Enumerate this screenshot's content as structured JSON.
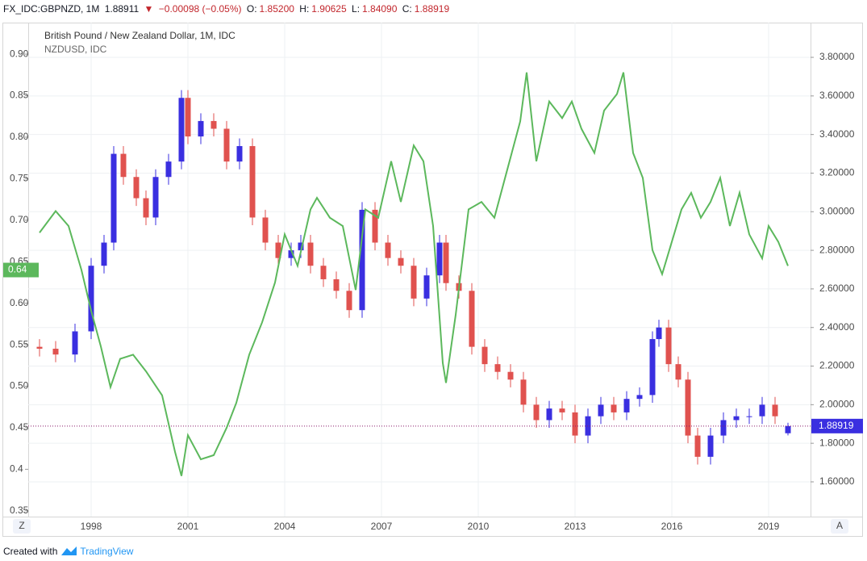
{
  "header": {
    "symbol": "FX_IDC:GBPNZD, 1M",
    "last": "1.88911",
    "arrow": "▼",
    "change": "−0.00098 (−0.05%)",
    "o_label": "O:",
    "o": "1.85200",
    "h_label": "H:",
    "h": "1.90625",
    "l_label": "L:",
    "l": "1.84090",
    "c_label": "C:",
    "c": "1.88919"
  },
  "footer": {
    "text": "Created with",
    "brand": "TradingView"
  },
  "buttons": {
    "left": "Z",
    "right": "A"
  },
  "chart_data": {
    "type": "candlestick",
    "xlim": [
      1996.05,
      2020.3
    ],
    "xticks": [
      1998,
      2001,
      2004,
      2007,
      2010,
      2013,
      2016,
      2019
    ],
    "ylim": [
      0.343,
      0.938
    ],
    "yticks": [
      0.35,
      0.4,
      {
        "value": 0.45,
        "label": "0.45"
      },
      {
        "value": 0.5,
        "label": "0.50"
      },
      0.55,
      {
        "value": 0.6,
        "label": "0.60"
      },
      0.65,
      {
        "value": 0.7,
        "label": "0.70"
      },
      0.75,
      {
        "value": 0.8,
        "label": "0.80"
      },
      0.85,
      {
        "value": 0.9,
        "label": "0.90"
      }
    ],
    "y2lim": [
      1.42,
      3.98
    ],
    "y2ticks": [
      {
        "value": 1.6,
        "label": "1.60000"
      },
      {
        "value": 1.8,
        "label": "1.80000"
      },
      {
        "value": 2.0,
        "label": "2.00000"
      },
      {
        "value": 2.2,
        "label": "2.20000"
      },
      {
        "value": 2.4,
        "label": "2.40000"
      },
      {
        "value": 2.6,
        "label": "2.60000"
      },
      {
        "value": 2.8,
        "label": "2.80000"
      },
      {
        "value": 3.0,
        "label": "3.00000"
      },
      {
        "value": 3.2,
        "label": "3.20000"
      },
      {
        "value": 3.4,
        "label": "3.40000"
      },
      {
        "value": 3.6,
        "label": "3.60000"
      },
      {
        "value": 3.8,
        "label": "3.80000"
      }
    ],
    "grid": true,
    "series": [
      {
        "name": "British Pound / New Zealand Dollar, 1M, IDC",
        "type": "candlestick",
        "axis": "y2",
        "up_color": "#3a2fe0",
        "down_color": "#e0524f",
        "last_color": "#3a2fe0",
        "last_value": 1.88919,
        "x": [
          1996.4,
          1996.9,
          1997.5,
          1998.0,
          1998.4,
          1998.7,
          1999.0,
          1999.4,
          1999.7,
          2000.0,
          2000.4,
          2000.8,
          2001.0,
          2001.4,
          2001.8,
          2002.2,
          2002.6,
          2003.0,
          2003.4,
          2003.8,
          2004.2,
          2004.5,
          2004.8,
          2005.2,
          2005.6,
          2006.0,
          2006.4,
          2006.8,
          2007.2,
          2007.6,
          2008.0,
          2008.4,
          2008.8,
          2009.0,
          2009.4,
          2009.8,
          2010.2,
          2010.6,
          2011.0,
          2011.4,
          2011.8,
          2012.2,
          2012.6,
          2013.0,
          2013.4,
          2013.8,
          2014.2,
          2014.6,
          2015.0,
          2015.4,
          2015.6,
          2015.9,
          2016.2,
          2016.5,
          2016.8,
          2017.2,
          2017.6,
          2018.0,
          2018.4,
          2018.8,
          2019.2,
          2019.6
        ],
        "open": [
          2.3,
          2.29,
          2.26,
          2.38,
          2.72,
          2.84,
          3.3,
          3.18,
          3.07,
          2.97,
          3.18,
          3.26,
          3.59,
          3.39,
          3.47,
          3.43,
          3.26,
          3.34,
          2.97,
          2.84,
          2.76,
          2.8,
          2.84,
          2.72,
          2.65,
          2.59,
          2.49,
          3.01,
          2.84,
          2.76,
          2.72,
          2.55,
          2.67,
          2.84,
          2.63,
          2.59,
          2.3,
          2.21,
          2.17,
          2.13,
          2.0,
          1.92,
          1.98,
          1.96,
          1.84,
          1.94,
          2.0,
          1.96,
          2.03,
          2.05,
          2.34,
          2.4,
          2.21,
          2.13,
          1.84,
          1.73,
          1.84,
          1.92,
          1.94,
          1.94,
          2.0,
          1.852
        ],
        "high": [
          2.34,
          2.33,
          2.42,
          2.76,
          2.88,
          3.34,
          3.34,
          3.22,
          3.11,
          3.22,
          3.3,
          3.63,
          3.63,
          3.51,
          3.51,
          3.47,
          3.38,
          3.38,
          3.01,
          2.88,
          2.84,
          2.88,
          2.88,
          2.76,
          2.69,
          2.63,
          3.05,
          3.05,
          2.88,
          2.8,
          2.76,
          2.71,
          2.88,
          2.88,
          2.67,
          2.63,
          2.34,
          2.25,
          2.21,
          2.17,
          2.04,
          2.02,
          2.02,
          2.0,
          1.98,
          2.04,
          2.04,
          2.07,
          2.09,
          2.38,
          2.44,
          2.44,
          2.25,
          2.17,
          1.88,
          1.88,
          1.96,
          1.98,
          1.98,
          2.04,
          2.04,
          1.90625
        ],
        "low": [
          2.25,
          2.22,
          2.22,
          2.34,
          2.68,
          2.8,
          3.14,
          3.03,
          2.93,
          2.93,
          3.14,
          3.22,
          3.35,
          3.35,
          3.39,
          3.22,
          3.22,
          2.93,
          2.8,
          2.72,
          2.72,
          2.76,
          2.68,
          2.61,
          2.55,
          2.45,
          2.45,
          2.8,
          2.72,
          2.68,
          2.51,
          2.51,
          2.63,
          2.59,
          2.55,
          2.26,
          2.17,
          2.13,
          2.09,
          1.96,
          1.88,
          1.88,
          1.92,
          1.8,
          1.8,
          1.9,
          1.92,
          1.92,
          1.99,
          2.01,
          2.3,
          2.17,
          2.09,
          1.8,
          1.69,
          1.69,
          1.8,
          1.88,
          1.9,
          1.9,
          1.9,
          1.8409
        ],
        "close": [
          2.29,
          2.26,
          2.38,
          2.72,
          2.84,
          3.3,
          3.18,
          3.07,
          2.97,
          3.18,
          3.26,
          3.59,
          3.39,
          3.47,
          3.43,
          3.26,
          3.34,
          2.97,
          2.84,
          2.76,
          2.8,
          2.84,
          2.72,
          2.65,
          2.59,
          2.49,
          3.01,
          2.84,
          2.76,
          2.72,
          2.55,
          2.67,
          2.84,
          2.63,
          2.59,
          2.3,
          2.21,
          2.17,
          2.13,
          2.0,
          1.92,
          1.98,
          1.96,
          1.84,
          1.94,
          2.0,
          1.96,
          2.03,
          2.05,
          2.34,
          2.4,
          2.21,
          2.13,
          1.84,
          1.73,
          1.84,
          1.92,
          1.94,
          1.94,
          2.0,
          1.94,
          1.88919
        ]
      },
      {
        "name": "NZDUSD, IDC",
        "type": "line",
        "axis": "y",
        "color": "#5cb85c",
        "last_value": 0.64,
        "x": [
          1996.4,
          1996.9,
          1997.3,
          1997.7,
          1998.0,
          1998.3,
          1998.6,
          1998.9,
          1999.3,
          1999.7,
          2000.2,
          2000.6,
          2000.8,
          2001.0,
          2001.4,
          2001.8,
          2002.2,
          2002.5,
          2002.9,
          2003.3,
          2003.7,
          2004.0,
          2004.4,
          2004.8,
          2005.0,
          2005.4,
          2005.8,
          2006.2,
          2006.5,
          2006.9,
          2007.3,
          2007.6,
          2008.0,
          2008.3,
          2008.6,
          2008.9,
          2009.0,
          2009.3,
          2009.7,
          2010.1,
          2010.5,
          2010.9,
          2011.3,
          2011.5,
          2011.8,
          2012.2,
          2012.6,
          2012.9,
          2013.2,
          2013.6,
          2013.9,
          2014.3,
          2014.5,
          2014.8,
          2015.1,
          2015.4,
          2015.7,
          2016.0,
          2016.3,
          2016.6,
          2016.9,
          2017.2,
          2017.5,
          2017.8,
          2018.1,
          2018.4,
          2018.8,
          2019.0,
          2019.3,
          2019.6
        ],
        "values": [
          0.685,
          0.711,
          0.693,
          0.64,
          0.591,
          0.548,
          0.499,
          0.533,
          0.538,
          0.518,
          0.489,
          0.421,
          0.392,
          0.441,
          0.412,
          0.417,
          0.45,
          0.48,
          0.538,
          0.577,
          0.625,
          0.683,
          0.645,
          0.713,
          0.727,
          0.703,
          0.693,
          0.616,
          0.713,
          0.703,
          0.771,
          0.722,
          0.79,
          0.771,
          0.693,
          0.528,
          0.504,
          0.586,
          0.713,
          0.722,
          0.703,
          0.761,
          0.819,
          0.878,
          0.771,
          0.843,
          0.823,
          0.843,
          0.81,
          0.781,
          0.832,
          0.852,
          0.878,
          0.781,
          0.751,
          0.664,
          0.635,
          0.674,
          0.713,
          0.733,
          0.703,
          0.722,
          0.751,
          0.693,
          0.733,
          0.683,
          0.654,
          0.693,
          0.674,
          0.645
        ]
      }
    ]
  }
}
